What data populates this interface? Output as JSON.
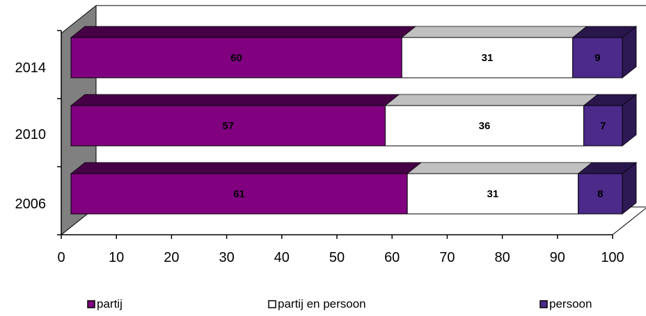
{
  "chart_data": {
    "type": "bar",
    "orientation": "horizontal",
    "stacked": true,
    "three_d": true,
    "categories": [
      "2014",
      "2010",
      "2006"
    ],
    "series": [
      {
        "name": "partij",
        "values": [
          60,
          57,
          61
        ],
        "color": "#800080"
      },
      {
        "name": "partij en persoon",
        "values": [
          31,
          36,
          31
        ],
        "color": "#ffffff"
      },
      {
        "name": "persoon",
        "values": [
          9,
          7,
          8
        ],
        "color": "#4b2a8a"
      }
    ],
    "x_ticks": [
      "0",
      "10",
      "20",
      "30",
      "40",
      "50",
      "60",
      "70",
      "80",
      "90",
      "100"
    ],
    "xlim": [
      0,
      100
    ],
    "grid": false,
    "legend_position": "bottom"
  }
}
